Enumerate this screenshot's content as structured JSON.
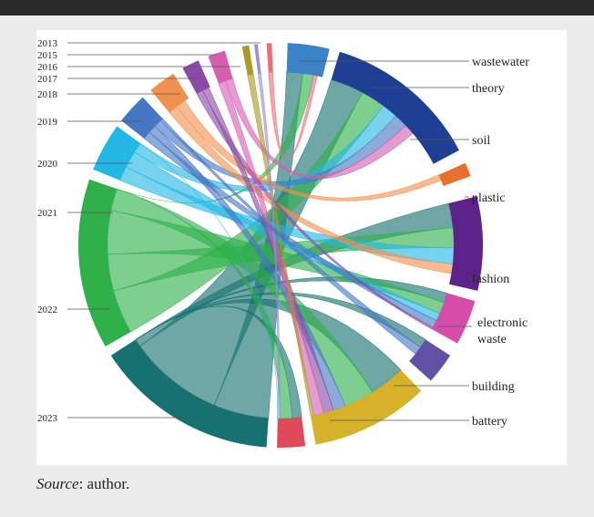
{
  "caption": {
    "source_label": "Source",
    "source_text": ": author."
  },
  "years": [
    "2013",
    "2015",
    "2016",
    "2017",
    "2018",
    "2019",
    "2020",
    "2021",
    "2022",
    "2023"
  ],
  "topics": [
    "wastewater",
    "theory",
    "soil",
    "plastic",
    "fashion",
    "electronic waste",
    "building",
    "battery"
  ],
  "electronic_waste_line1": "electronic",
  "electronic_waste_line2": "waste",
  "colors": {
    "2013": "#e8707a",
    "2015": "#9b8ed6",
    "2016": "#a89a2c",
    "2017": "#d45fb0",
    "2018": "#8a4aa6",
    "2019": "#f0924f",
    "2020": "#4577c4",
    "2021": "#22b7e4",
    "2022": "#2fb04a",
    "2023": "#167170",
    "wastewater": "#3b82c6",
    "theory": "#1f3f94",
    "soil": "#e8702e",
    "plastic": "#5e238a",
    "fashion": "#d64ca8",
    "electronic waste": "#6150a4",
    "building": "#d6b22b",
    "battery": "#df4a5a"
  }
}
